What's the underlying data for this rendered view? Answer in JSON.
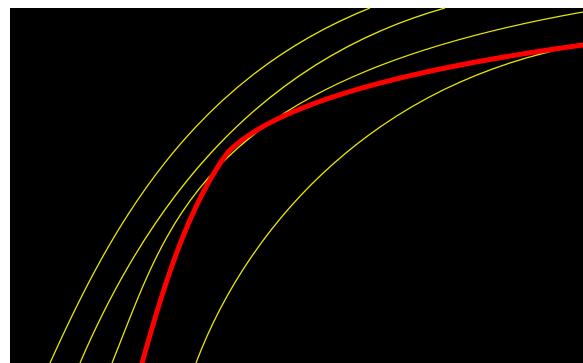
{
  "canvas": {
    "background_color": "#000000",
    "border_color": "#ffffff"
  },
  "guide_curves": {
    "color": "#e6e600",
    "count": 4
  },
  "highlight_curve": {
    "color": "#ff0000"
  }
}
